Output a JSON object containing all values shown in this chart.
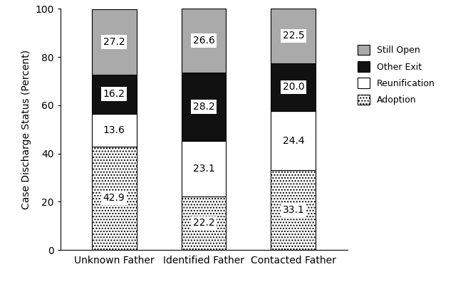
{
  "categories": [
    "Unknown Father",
    "Identified Father",
    "Contacted Father"
  ],
  "series": {
    "Adoption": [
      42.9,
      22.2,
      33.1
    ],
    "Reunification": [
      13.6,
      23.1,
      24.4
    ],
    "Other Exit": [
      16.2,
      28.2,
      20.0
    ],
    "Still Open": [
      27.2,
      26.6,
      22.5
    ]
  },
  "ylabel": "Case Discharge Status (Percent)",
  "ylim": [
    0,
    100
  ],
  "yticks": [
    0,
    20,
    40,
    60,
    80,
    100
  ],
  "legend_order": [
    "Still Open",
    "Other Exit",
    "Reunification",
    "Adoption"
  ],
  "bar_width": 0.5,
  "label_fontsize": 10,
  "axis_label_fontsize": 10,
  "tick_fontsize": 10,
  "legend_fontsize": 9
}
